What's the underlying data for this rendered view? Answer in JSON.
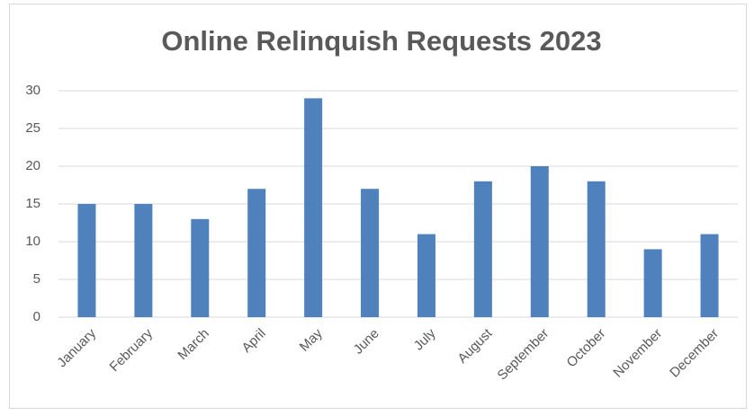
{
  "chart_data": {
    "type": "bar",
    "title": "Online Relinquish Requests 2023",
    "categories": [
      "January",
      "February",
      "March",
      "April",
      "May",
      "June",
      "July",
      "August",
      "September",
      "October",
      "November",
      "December"
    ],
    "values": [
      15,
      15,
      13,
      17,
      29,
      17,
      11,
      18,
      20,
      18,
      9,
      11
    ],
    "color": "#4f81bd",
    "ylim": [
      0,
      30
    ],
    "yticks": [
      0,
      5,
      10,
      15,
      20,
      25,
      30
    ],
    "grid": true
  }
}
